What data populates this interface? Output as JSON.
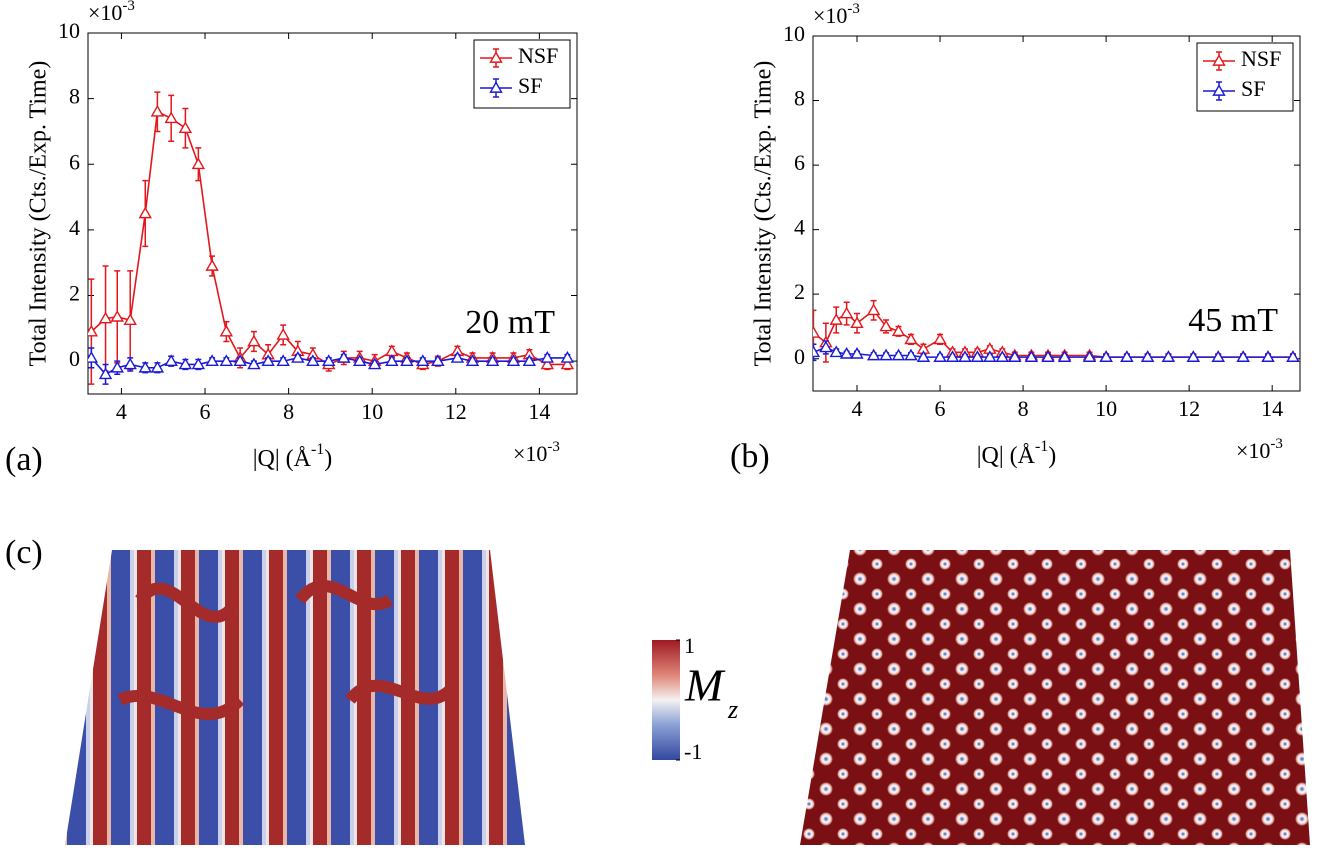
{
  "chart_data": [
    {
      "type": "line",
      "panel_label": "(a)",
      "annotation": "20 mT",
      "y_label": "Total Intensity (Cts./Exp. Time)",
      "x_label": {
        "main": "|Q| (Å",
        "sup": "-1",
        "end": ")"
      },
      "y_multiplier": {
        "base": "×10",
        "exponent": "-3"
      },
      "x_multiplier": {
        "base": "×10",
        "exponent": "-3"
      },
      "xlim": [
        3.2,
        14.9
      ],
      "xticks": [
        4,
        6,
        8,
        10,
        12,
        14
      ],
      "ylim": [
        -1,
        10
      ],
      "yticks": [
        0,
        2,
        4,
        6,
        8,
        10
      ],
      "legend": "top-right",
      "x": [
        3.28,
        3.62,
        3.9,
        4.21,
        4.57,
        4.86,
        5.19,
        5.53,
        5.84,
        6.17,
        6.51,
        6.84,
        7.17,
        7.51,
        7.87,
        8.22,
        8.58,
        8.96,
        9.32,
        9.7,
        10.06,
        10.47,
        10.83,
        11.21,
        11.57,
        12.04,
        12.4,
        12.88,
        13.38,
        13.76,
        14.19,
        14.67
      ],
      "series": [
        {
          "name": "NSF",
          "color": "#e3171b",
          "values": [
            0.9,
            1.3,
            1.35,
            1.25,
            4.5,
            7.6,
            7.4,
            7.1,
            6.0,
            2.9,
            0.9,
            0.1,
            0.6,
            0.2,
            0.8,
            0.3,
            0.2,
            -0.1,
            0.1,
            0.1,
            0,
            0.3,
            0.1,
            -0.1,
            0,
            0.3,
            0.1,
            0.1,
            0.1,
            0.2,
            -0.1,
            -0.1
          ],
          "errors": [
            1.6,
            1.6,
            1.4,
            1.5,
            1.0,
            0.6,
            0.7,
            0.6,
            0.5,
            0.3,
            0.3,
            0.3,
            0.3,
            0.3,
            0.3,
            0.3,
            0.2,
            0.2,
            0.2,
            0.2,
            0.2,
            0.15,
            0.15,
            0.15,
            0.15,
            0.15,
            0.15,
            0.15,
            0.15,
            0.15,
            0.15,
            0.15
          ]
        },
        {
          "name": "SF",
          "color": "#1a1ad6",
          "values": [
            0.1,
            -0.4,
            -0.2,
            -0.1,
            -0.2,
            -0.2,
            0,
            -0.1,
            -0.1,
            0,
            0,
            0,
            -0.1,
            0,
            0,
            0.1,
            0,
            0,
            0.1,
            0,
            -0.1,
            0,
            0,
            0,
            0,
            0.1,
            0,
            0,
            0,
            0,
            0.1,
            0.1
          ],
          "errors": [
            0.3,
            0.3,
            0.2,
            0.2,
            0.15,
            0.15,
            0.15,
            0.15,
            0.15,
            0.1,
            0.1,
            0.1,
            0.1,
            0.1,
            0.1,
            0.1,
            0.1,
            0.1,
            0.1,
            0.1,
            0.1,
            0.1,
            0.1,
            0.1,
            0.1,
            0.1,
            0.1,
            0.1,
            0.1,
            0.1,
            0.1,
            0.1
          ]
        }
      ]
    },
    {
      "type": "line",
      "panel_label": "(b)",
      "annotation": "45 mT",
      "y_label": "Total Intensity (Cts./Exp. Time)",
      "x_label": {
        "main": "|Q| (Å",
        "sup": "-1",
        "end": ")"
      },
      "y_multiplier": {
        "base": "×10",
        "exponent": "-3"
      },
      "x_multiplier": {
        "base": "×10",
        "exponent": "-3"
      },
      "xlim": [
        2.94,
        14.67
      ],
      "xticks": [
        4,
        6,
        8,
        10,
        12,
        14
      ],
      "ylim": [
        -1,
        10
      ],
      "yticks": [
        0,
        2,
        4,
        6,
        8,
        10
      ],
      "legend": "top-right",
      "x": [
        2.95,
        3.25,
        3.5,
        3.75,
        4.0,
        4.4,
        4.7,
        5.0,
        5.3,
        5.6,
        6.0,
        6.3,
        6.6,
        6.9,
        7.2,
        7.5,
        7.8,
        8.2,
        8.6,
        9.0,
        9.6,
        10.0,
        10.5,
        11.0,
        11.5,
        12.1,
        12.7,
        13.3,
        13.9,
        14.5
      ],
      "series": [
        {
          "name": "NSF",
          "color": "#e3171b",
          "values": [
            0.8,
            0.5,
            1.2,
            1.4,
            1.1,
            1.5,
            1.0,
            0.85,
            0.6,
            0.3,
            0.6,
            0.2,
            0.2,
            0.2,
            0.3,
            0.2,
            0.1,
            0.1,
            0.1,
            0.1,
            0.1,
            0.05,
            0.05,
            0.05,
            0.05,
            0.05,
            0.05,
            0.05,
            0.05,
            0.05
          ],
          "errors": [
            0.7,
            0.6,
            0.4,
            0.35,
            0.3,
            0.3,
            0.2,
            0.15,
            0.15,
            0.15,
            0.15,
            0.1,
            0.1,
            0.1,
            0.1,
            0.1,
            0.1,
            0.1,
            0.1,
            0.1,
            0.1,
            0.1,
            0.1,
            0.1,
            0.1,
            0.1,
            0.1,
            0.1,
            0.1,
            0.1
          ]
        },
        {
          "name": "SF",
          "color": "#1a1ad6",
          "values": [
            0.2,
            0.35,
            0.2,
            0.15,
            0.15,
            0.1,
            0.1,
            0.1,
            0.1,
            0.05,
            0.05,
            0.05,
            0.05,
            0.05,
            0.05,
            0.05,
            0.05,
            0.05,
            0.05,
            0.05,
            0.05,
            0.05,
            0.05,
            0.05,
            0.05,
            0.05,
            0.05,
            0.05,
            0.05,
            0.05
          ],
          "errors": [
            0.25,
            0.2,
            0.1,
            0.08,
            0.08,
            0.08,
            0.08,
            0.08,
            0.08,
            0.08,
            0.08,
            0.08,
            0.08,
            0.08,
            0.08,
            0.08,
            0.08,
            0.08,
            0.08,
            0.08,
            0.08,
            0.08,
            0.08,
            0.08,
            0.08,
            0.08,
            0.08,
            0.08,
            0.08,
            0.08
          ]
        }
      ]
    }
  ],
  "panel_c": {
    "label": "(c)",
    "colorbar": {
      "label": "M",
      "label_sub": "z",
      "ticks": [
        -1,
        1
      ]
    }
  }
}
